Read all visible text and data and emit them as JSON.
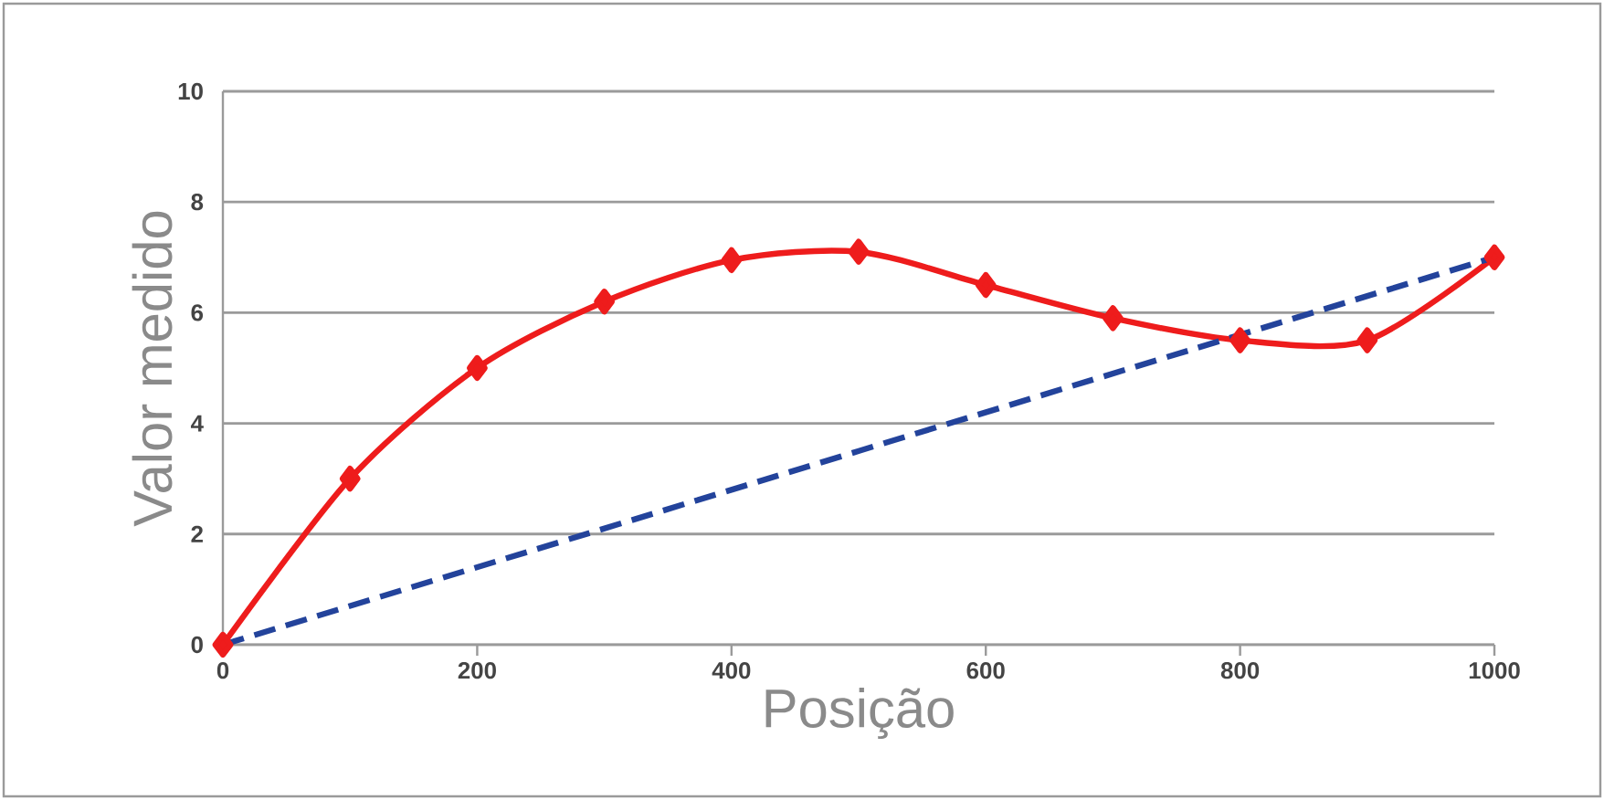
{
  "chart_data": {
    "type": "line",
    "xlabel": "Posição",
    "ylabel": "Valor medido",
    "xlim": [
      0,
      1000
    ],
    "xticks": [
      0,
      200,
      400,
      600,
      800,
      1000
    ],
    "ylim": [
      0,
      10
    ],
    "yticks": [
      0,
      2,
      4,
      6,
      8,
      10
    ],
    "grid": "y",
    "series": [
      {
        "color": "#ee1c1c",
        "marker": "diamond",
        "line_style": "solid",
        "x": [
          0,
          100,
          200,
          300,
          400,
          500,
          600,
          700,
          800,
          900,
          1000
        ],
        "values": [
          0,
          3.0,
          5.0,
          6.2,
          6.95,
          7.1,
          6.5,
          5.9,
          5.5,
          5.5,
          7.0
        ]
      },
      {
        "color": "#23439b",
        "marker": "none",
        "line_style": "dashed",
        "x": [
          0,
          1000
        ],
        "values": [
          0,
          7.0
        ]
      }
    ]
  }
}
